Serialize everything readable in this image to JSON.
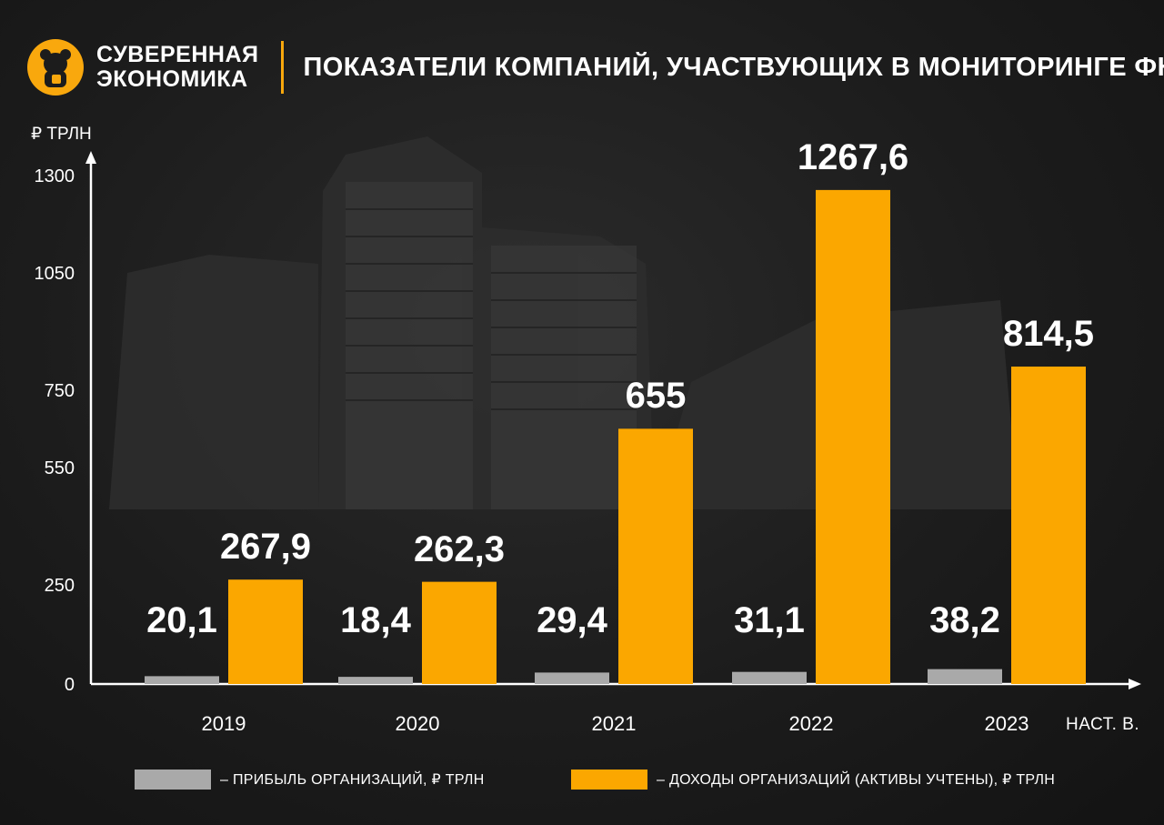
{
  "header": {
    "brand_line1": "СУВЕРЕННАЯ",
    "brand_line2": "ЭКОНОМИКА",
    "title": "ПОКАЗАТЕЛИ КОМПАНИЙ, УЧАСТВУЮЩИХ В МОНИТОРИНГЕ ФНС"
  },
  "colors": {
    "accent": "#f9a80d",
    "profit_bar": "#a9a9a9",
    "income_bar": "#fba700",
    "background": "#1c1c1c"
  },
  "chart_data": {
    "type": "bar",
    "title": "ПОКАЗАТЕЛИ КОМПАНИЙ, УЧАСТВУЮЩИХ В МОНИТОРИНГЕ ФНС",
    "ylabel": "₽ ТРЛН",
    "xlabel": "НАСТ. В.",
    "categories": [
      "2019",
      "2020",
      "2021",
      "2022",
      "2023"
    ],
    "yticks": [
      "0",
      "250",
      "550",
      "750",
      "1050",
      "1300"
    ],
    "ylim": [
      0,
      1300
    ],
    "series": [
      {
        "name": "– ПРИБЫЛЬ ОРГАНИЗАЦИЙ, ₽ ТРЛН",
        "values": [
          20.1,
          18.4,
          29.4,
          31.1,
          38.2
        ],
        "labels": [
          "20,1",
          "18,4",
          "29,4",
          "31,1",
          "38,2"
        ]
      },
      {
        "name": "– ДОХОДЫ ОРГАНИЗАЦИЙ (АКТИВЫ УЧТЕНЫ), ₽ ТРЛН",
        "values": [
          267.9,
          262.3,
          655,
          1267.6,
          814.5
        ],
        "labels": [
          "267,9",
          "262,3",
          "655",
          "1267,6",
          "814,5"
        ]
      }
    ],
    "grid": false,
    "legend_position": "bottom"
  }
}
